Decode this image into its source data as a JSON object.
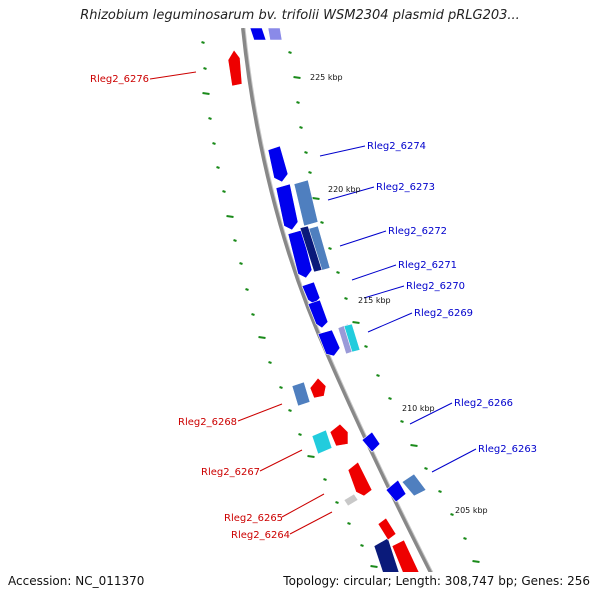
{
  "title": "Rhizobium leguminosarum bv. trifolii WSM2304 plasmid pRLG203...",
  "footer": {
    "accession": "Accession: NC_011370",
    "summary": "Topology: circular; Length: 308,747 bp; Genes: 256"
  },
  "colors": {
    "forward": "#ff0000",
    "reverse": "#0000ee",
    "forward_label": "#cc0000",
    "reverse_label": "#0000cc",
    "backbone": "#888888",
    "tick": "#1a8a1a"
  },
  "scale_ticks": [
    "225 kbp",
    "220 kbp",
    "215 kbp",
    "210 kbp",
    "205 kbp"
  ],
  "gene_labels": {
    "forward": [
      "Rleg2_6276",
      "Rleg2_6268",
      "Rleg2_6267",
      "Rleg2_6265",
      "Rleg2_6264"
    ],
    "reverse": [
      "Rleg2_6274",
      "Rleg2_6273",
      "Rleg2_6272",
      "Rleg2_6271",
      "Rleg2_6270",
      "Rleg2_6269",
      "Rleg2_6266",
      "Rleg2_6263"
    ]
  }
}
